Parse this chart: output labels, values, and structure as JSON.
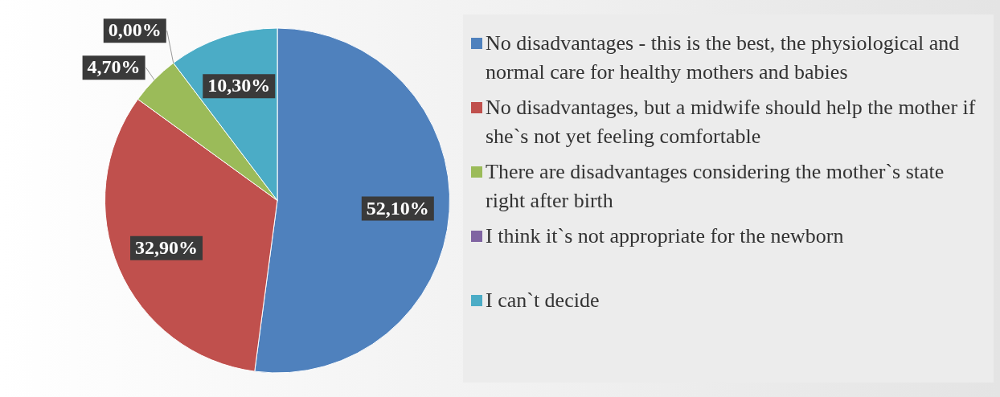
{
  "chart_data": {
    "type": "pie",
    "categories": [
      "No disadvantages - this is the best, the physiological and normal care for healthy mothers and babies",
      "No disadvantages, but a midwife should help the mother if she`s not yet feeling comfortable",
      "There are disadvantages considering the mother`s state right after birth",
      "I think it`s not appropriate for the newborn",
      "I can`t decide"
    ],
    "values": [
      52.1,
      32.9,
      4.7,
      0,
      10.3
    ],
    "colors": [
      "#4f81bd",
      "#c0504d",
      "#9bbb59",
      "#8064a2",
      "#4bacc6"
    ],
    "value_labels": [
      "52,10%",
      "32,90%",
      "4,70%",
      "0,00%",
      "10,30%"
    ],
    "legend": "right"
  }
}
